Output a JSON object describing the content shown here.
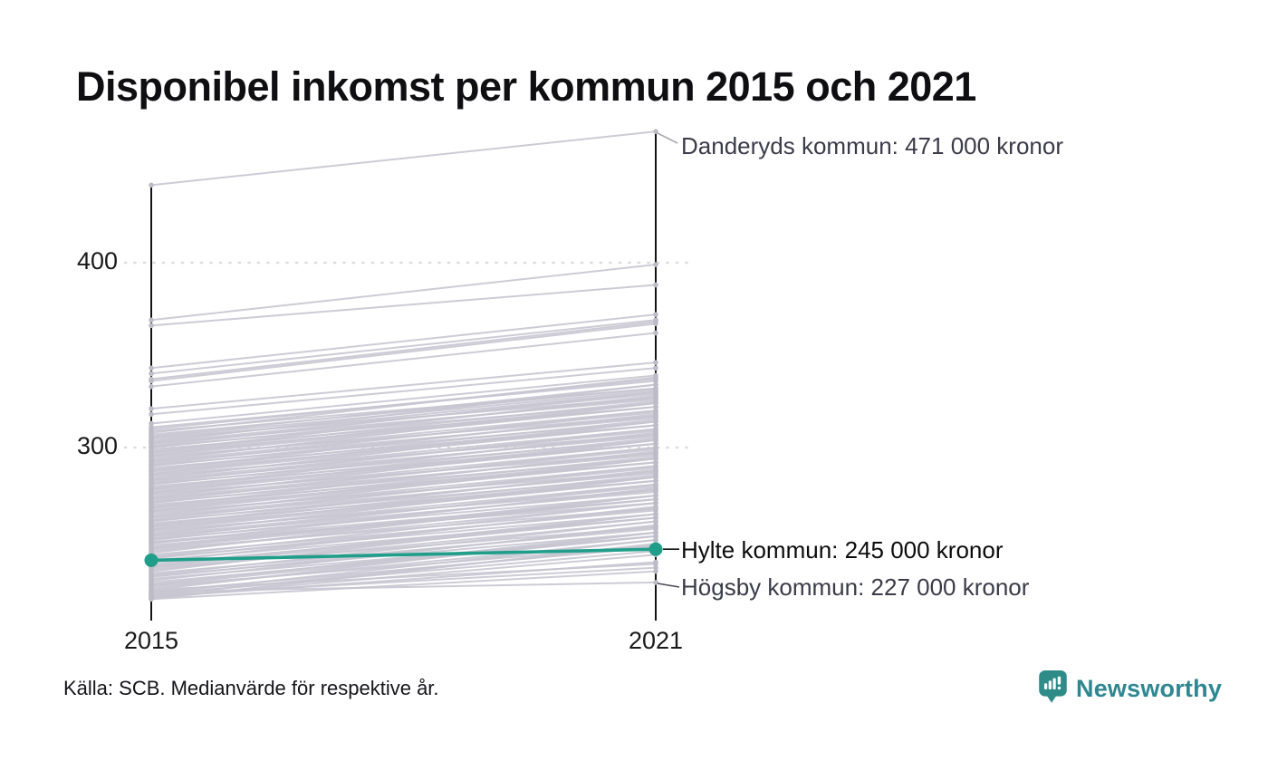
{
  "title": "Disponibel inkomst per kommun 2015 och 2021",
  "source": "Källa: SCB. Medianvärde för respektive år.",
  "brand": {
    "name": "Newsworthy",
    "icon": "newsworthy-speech-bubble-chart-icon",
    "color": "#2f8791"
  },
  "colors": {
    "highlight": "#209e8a",
    "slope_line": "#c6c5d0",
    "endpoint_dot": "#bcbbc7",
    "axis": "#141414",
    "grid": "#dcdcdc",
    "annotation_muted": "#3b3b49",
    "annotation_strong": "#0c0c0c"
  },
  "chart_data": {
    "type": "line",
    "subtype": "slope-chart",
    "title": "Disponibel inkomst per kommun 2015 och 2021",
    "x_categories": [
      "2015",
      "2021"
    ],
    "unit": "tusen kronor (medianvärde disponibel inkomst)",
    "ytick_labels": [
      "400",
      "300"
    ],
    "yticks": [
      400,
      300
    ],
    "ylim": [
      206,
      480
    ],
    "grid": "dotted-horizontal",
    "legend": "none",
    "highlight_series": {
      "name": "Hylte kommun",
      "values": [
        239,
        245
      ]
    },
    "annotations": [
      {
        "name": "Danderyds kommun",
        "values": [
          442,
          471
        ],
        "label": "Danderyds kommun: 471 000 kronor",
        "emphasis": false
      },
      {
        "name": "Hylte kommun",
        "values": [
          239,
          245
        ],
        "label": "Hylte kommun: 245 000 kronor",
        "emphasis": true
      },
      {
        "name": "Högsby kommun",
        "values": [
          222,
          227
        ],
        "label": "Högsby kommun: 227 000 kronor",
        "emphasis": false
      }
    ],
    "lines": [
      [
        442,
        471
      ],
      [
        369,
        399
      ],
      [
        366,
        388
      ],
      [
        343,
        372
      ],
      [
        340,
        369
      ],
      [
        337,
        368
      ],
      [
        336,
        367
      ],
      [
        333,
        362
      ],
      [
        321,
        346
      ],
      [
        318,
        343
      ],
      [
        313,
        339
      ],
      [
        311,
        336
      ],
      [
        310,
        337
      ],
      [
        309,
        332
      ],
      [
        308,
        338
      ],
      [
        307,
        332
      ],
      [
        306,
        334
      ],
      [
        305,
        327
      ],
      [
        304,
        330
      ],
      [
        303,
        334
      ],
      [
        302,
        326
      ],
      [
        301,
        330
      ],
      [
        300,
        327
      ],
      [
        299,
        322
      ],
      [
        298,
        328
      ],
      [
        297,
        322
      ],
      [
        296,
        324
      ],
      [
        295,
        317
      ],
      [
        294,
        320
      ],
      [
        293,
        324
      ],
      [
        292,
        316
      ],
      [
        291,
        320
      ],
      [
        290,
        317
      ],
      [
        289,
        312
      ],
      [
        288,
        318
      ],
      [
        287,
        312
      ],
      [
        286,
        314
      ],
      [
        285,
        307
      ],
      [
        284,
        310
      ],
      [
        283,
        314
      ],
      [
        282,
        306
      ],
      [
        281,
        310
      ],
      [
        280,
        307
      ],
      [
        279,
        302
      ],
      [
        278,
        308
      ],
      [
        277,
        302
      ],
      [
        276,
        304
      ],
      [
        275,
        297
      ],
      [
        274,
        300
      ],
      [
        273,
        304
      ],
      [
        272,
        296
      ],
      [
        271,
        300
      ],
      [
        270,
        297
      ],
      [
        269,
        292
      ],
      [
        268,
        298
      ],
      [
        267,
        292
      ],
      [
        266,
        294
      ],
      [
        265,
        287
      ],
      [
        264,
        290
      ],
      [
        263,
        294
      ],
      [
        262,
        286
      ],
      [
        261,
        290
      ],
      [
        260,
        287
      ],
      [
        259,
        282
      ],
      [
        258,
        288
      ],
      [
        257,
        282
      ],
      [
        256,
        284
      ],
      [
        255,
        277
      ],
      [
        254,
        280
      ],
      [
        253,
        284
      ],
      [
        252,
        276
      ],
      [
        251,
        280
      ],
      [
        250,
        277
      ],
      [
        249,
        272
      ],
      [
        248,
        278
      ],
      [
        247,
        272
      ],
      [
        246,
        274
      ],
      [
        245,
        267
      ],
      [
        244,
        270
      ],
      [
        243,
        274
      ],
      [
        242,
        266
      ],
      [
        241,
        270
      ],
      [
        240,
        267
      ],
      [
        239,
        262
      ],
      [
        238,
        268
      ],
      [
        237,
        262
      ],
      [
        236,
        264
      ],
      [
        235,
        257
      ],
      [
        234,
        260
      ],
      [
        233,
        264
      ],
      [
        232,
        256
      ],
      [
        231,
        260
      ],
      [
        230,
        257
      ],
      [
        229,
        252
      ],
      [
        228,
        258
      ],
      [
        227,
        252
      ],
      [
        226,
        254
      ],
      [
        225,
        247
      ],
      [
        224,
        250
      ],
      [
        223,
        254
      ],
      [
        222,
        246
      ],
      [
        221,
        250
      ],
      [
        220,
        247
      ],
      [
        219,
        242
      ],
      [
        218,
        248
      ],
      [
        305.5,
        331
      ],
      [
        302.5,
        329
      ],
      [
        300.5,
        324
      ],
      [
        297.5,
        325
      ],
      [
        295.5,
        322
      ],
      [
        292.5,
        319
      ],
      [
        290.5,
        314
      ],
      [
        287.5,
        315
      ],
      [
        285.5,
        312
      ],
      [
        282.5,
        309
      ],
      [
        280.5,
        304
      ],
      [
        277.5,
        305
      ],
      [
        275.5,
        302
      ],
      [
        272.5,
        299
      ],
      [
        270.5,
        294
      ],
      [
        267.5,
        295
      ],
      [
        265.5,
        292
      ],
      [
        262.5,
        289
      ],
      [
        260.5,
        284
      ],
      [
        257.5,
        285
      ],
      [
        255.5,
        282
      ],
      [
        252.5,
        279
      ],
      [
        250.5,
        274
      ],
      [
        248.5,
        270
      ],
      [
        245.5,
        272
      ],
      [
        240.5,
        264
      ],
      [
        235.5,
        262
      ],
      [
        230.5,
        254
      ],
      [
        225.5,
        252
      ],
      [
        220.5,
        244
      ],
      [
        222,
        227
      ],
      [
        219,
        238
      ],
      [
        218,
        233
      ],
      [
        220,
        235
      ],
      [
        223,
        237
      ]
    ]
  }
}
